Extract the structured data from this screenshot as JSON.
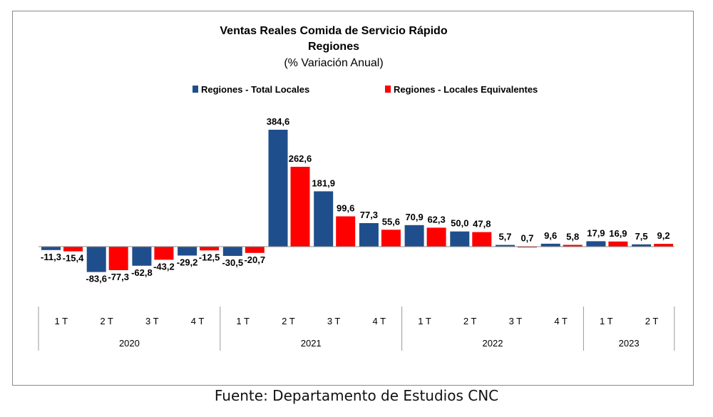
{
  "chart_data": {
    "type": "bar",
    "title": "Ventas Reales Comida de Servicio Rápido",
    "subtitle": "Regiones",
    "subtitle2": "(% Variación Anual)",
    "categories": [
      "1 T",
      "2 T",
      "3 T",
      "4 T",
      "1 T",
      "2 T",
      "3 T",
      "4 T",
      "1 T",
      "2 T",
      "3 T",
      "4 T",
      "1 T",
      "2 T"
    ],
    "years": [
      {
        "label": "2020",
        "quarters": 4
      },
      {
        "label": "2021",
        "quarters": 4
      },
      {
        "label": "2022",
        "quarters": 4
      },
      {
        "label": "2023",
        "quarters": 2
      }
    ],
    "series": [
      {
        "name": "Regiones - Total Locales",
        "color": "#1f4e8c",
        "values": [
          -11.3,
          -83.6,
          -62.8,
          -29.2,
          -30.5,
          384.6,
          181.9,
          77.3,
          70.9,
          50.0,
          5.7,
          9.6,
          17.9,
          7.5
        ],
        "labels": [
          "-11,3",
          "-83,6",
          "-62,8",
          "-29,2",
          "-30,5",
          "384,6",
          "181,9",
          "77,3",
          "70,9",
          "50,0",
          "5,7",
          "9,6",
          "17,9",
          "7,5"
        ]
      },
      {
        "name": "Regiones - Locales Equivalentes",
        "color": "#ff0000",
        "values": [
          -15.4,
          -77.3,
          -43.2,
          -12.5,
          -20.7,
          262.6,
          99.6,
          55.6,
          62.3,
          47.8,
          0.7,
          5.8,
          16.9,
          9.2
        ],
        "labels": [
          "-15,4",
          "-77,3",
          "-43,2",
          "-12,5",
          "-20,7",
          "262,6",
          "99,6",
          "55,6",
          "62,3",
          "47,8",
          "0,7",
          "5,8",
          "16,9",
          "9,2"
        ]
      }
    ],
    "legend_position": "top",
    "grid": false
  },
  "source": "Fuente: Departamento de Estudios CNC"
}
